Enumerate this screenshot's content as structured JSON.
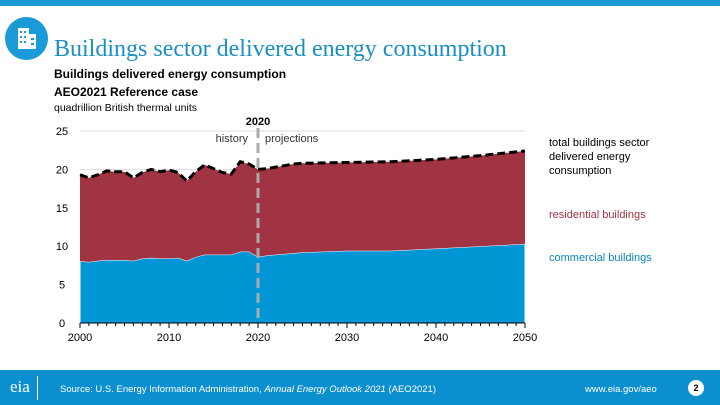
{
  "header": {
    "title": "Buildings sector delivered energy consumption",
    "subtitle1": "Buildings delivered energy consumption",
    "subtitle2": "AEO2021 Reference case",
    "units": "quadrillion British thermal units",
    "icon": "office-building-icon"
  },
  "footer": {
    "source_prefix": "Source: U.S. Energy Information Administration, ",
    "source_italic": "Annual Energy Outlook 2021",
    "source_suffix": " (AEO2021)",
    "url": "www.eia.gov/aeo",
    "page": "2",
    "logo": "eia"
  },
  "chart_data": {
    "type": "area",
    "stacked": true,
    "x": [
      2000,
      2001,
      2002,
      2003,
      2004,
      2005,
      2006,
      2007,
      2008,
      2009,
      2010,
      2011,
      2012,
      2013,
      2014,
      2015,
      2016,
      2017,
      2018,
      2019,
      2020,
      2021,
      2022,
      2023,
      2024,
      2025,
      2030,
      2035,
      2040,
      2045,
      2050
    ],
    "series": [
      {
        "name": "commercial buildings",
        "color": "#0096d6",
        "values": [
          8.05,
          7.95,
          8.1,
          8.2,
          8.2,
          8.2,
          8.1,
          8.4,
          8.5,
          8.4,
          8.4,
          8.5,
          8.1,
          8.6,
          8.9,
          8.9,
          8.9,
          8.9,
          9.3,
          9.3,
          8.6,
          8.8,
          8.9,
          9.0,
          9.1,
          9.2,
          9.4,
          9.4,
          9.7,
          10.0,
          10.3
        ]
      },
      {
        "name": "residential buildings",
        "color": "#a03442",
        "values": [
          11.25,
          10.95,
          11.2,
          11.6,
          11.5,
          11.5,
          10.8,
          11.2,
          11.5,
          11.3,
          11.5,
          11.1,
          10.4,
          11.1,
          11.7,
          11.2,
          10.7,
          10.5,
          11.7,
          11.4,
          11.4,
          11.3,
          11.4,
          11.5,
          11.6,
          11.6,
          11.5,
          11.6,
          11.6,
          11.8,
          12.1
        ]
      }
    ],
    "total": {
      "name": "total buildings sector delivered energy consumption",
      "values": [
        19.3,
        18.9,
        19.3,
        19.8,
        19.7,
        19.7,
        18.9,
        19.6,
        20.0,
        19.7,
        19.9,
        19.6,
        18.5,
        19.7,
        20.6,
        20.1,
        19.6,
        19.4,
        21.0,
        20.7,
        20.0,
        20.1,
        20.3,
        20.5,
        20.7,
        20.8,
        20.9,
        21.0,
        21.3,
        21.8,
        22.4
      ]
    },
    "xlim": [
      2000,
      2050
    ],
    "ylim": [
      0,
      25
    ],
    "xticks": [
      2000,
      2010,
      2020,
      2030,
      2040,
      2050
    ],
    "yticks": [
      0,
      5,
      10,
      15,
      20,
      25
    ],
    "divider": {
      "year": 2020,
      "label": "2020",
      "left": "history",
      "right": "projections"
    },
    "grid": true
  }
}
